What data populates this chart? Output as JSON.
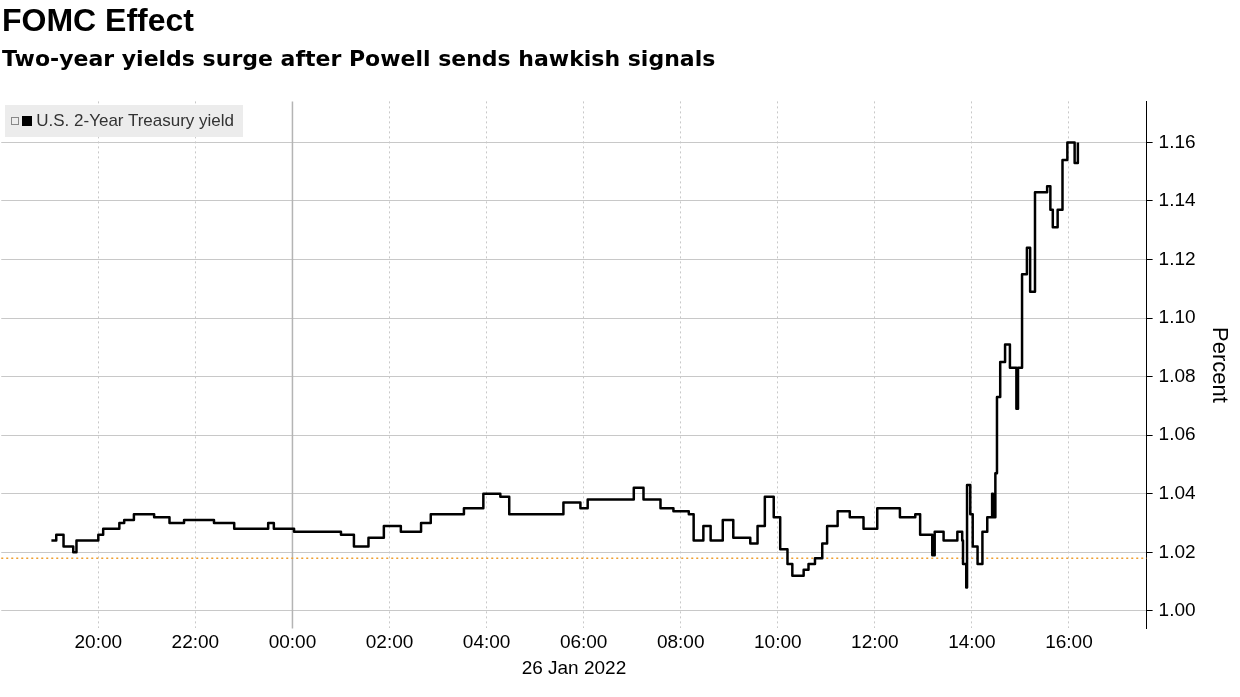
{
  "chart_data": {
    "type": "step",
    "title": "FOMC Effect",
    "subtitle": "Two-year yields surge after Powell sends hawkish signals",
    "xlabel": "26 Jan 2022",
    "ylabel": "Percent",
    "xlim": [
      "2022-01-25T18:00",
      "2022-01-26T17:36"
    ],
    "ylim": [
      0.994,
      1.174
    ],
    "xticks": [
      {
        "value": "2022-01-25T20:00",
        "label": "20:00"
      },
      {
        "value": "2022-01-25T22:00",
        "label": "22:00"
      },
      {
        "value": "2022-01-26T00:00",
        "label": "00:00"
      },
      {
        "value": "2022-01-26T02:00",
        "label": "02:00"
      },
      {
        "value": "2022-01-26T04:00",
        "label": "04:00"
      },
      {
        "value": "2022-01-26T06:00",
        "label": "06:00"
      },
      {
        "value": "2022-01-26T08:00",
        "label": "08:00"
      },
      {
        "value": "2022-01-26T10:00",
        "label": "10:00"
      },
      {
        "value": "2022-01-26T12:00",
        "label": "12:00"
      },
      {
        "value": "2022-01-26T14:00",
        "label": "14:00"
      },
      {
        "value": "2022-01-26T16:00",
        "label": "16:00"
      }
    ],
    "yticks": [
      {
        "value": 1.0,
        "label": "1.00"
      },
      {
        "value": 1.02,
        "label": "1.02"
      },
      {
        "value": 1.04,
        "label": "1.04"
      },
      {
        "value": 1.06,
        "label": "1.06"
      },
      {
        "value": 1.08,
        "label": "1.08"
      },
      {
        "value": 1.1,
        "label": "1.10"
      },
      {
        "value": 1.12,
        "label": "1.12"
      },
      {
        "value": 1.14,
        "label": "1.14"
      },
      {
        "value": 1.16,
        "label": "1.16"
      }
    ],
    "grid": true,
    "legend": "top left",
    "ref_lines": [
      {
        "axis": "x",
        "value": "2022-01-26T00:00",
        "color": "#b4b4b4",
        "line_style": "solid"
      },
      {
        "axis": "y",
        "value": 1.018,
        "color": "#f0a030",
        "line_style": "dotted"
      }
    ],
    "x": [
      "2022-01-25T19:02",
      "2022-01-25T19:08",
      "2022-01-25T19:17",
      "2022-01-25T19:29",
      "2022-01-25T19:33",
      "2022-01-25T20:00",
      "2022-01-25T20:06",
      "2022-01-25T20:26",
      "2022-01-25T20:32",
      "2022-01-25T20:44",
      "2022-01-25T21:09",
      "2022-01-25T21:28",
      "2022-01-25T21:46",
      "2022-01-25T22:23",
      "2022-01-25T22:48",
      "2022-01-25T23:30",
      "2022-01-25T23:37",
      "2022-01-26T00:02",
      "2022-01-26T00:47",
      "2022-01-26T01:00",
      "2022-01-26T01:16",
      "2022-01-26T01:34",
      "2022-01-26T01:53",
      "2022-01-26T02:14",
      "2022-01-26T02:39",
      "2022-01-26T02:51",
      "2022-01-26T03:32",
      "2022-01-26T03:56",
      "2022-01-26T04:17",
      "2022-01-26T04:28",
      "2022-01-26T05:11",
      "2022-01-26T05:35",
      "2022-01-26T05:56",
      "2022-01-26T06:05",
      "2022-01-26T06:42",
      "2022-01-26T07:02",
      "2022-01-26T07:14",
      "2022-01-26T07:35",
      "2022-01-26T07:51",
      "2022-01-26T08:10",
      "2022-01-26T08:16",
      "2022-01-26T08:28",
      "2022-01-26T08:37",
      "2022-01-26T08:52",
      "2022-01-26T09:05",
      "2022-01-26T09:26",
      "2022-01-26T09:35",
      "2022-01-26T09:44",
      "2022-01-26T09:55",
      "2022-01-26T10:03",
      "2022-01-26T10:12",
      "2022-01-26T10:18",
      "2022-01-26T10:32",
      "2022-01-26T10:38",
      "2022-01-26T10:46",
      "2022-01-26T10:55",
      "2022-01-26T11:01",
      "2022-01-26T11:14",
      "2022-01-26T11:29",
      "2022-01-26T11:46",
      "2022-01-26T12:03",
      "2022-01-26T12:31",
      "2022-01-26T12:50",
      "2022-01-26T12:56",
      "2022-01-26T13:11",
      "2022-01-26T13:14",
      "2022-01-26T13:25",
      "2022-01-26T13:42",
      "2022-01-26T13:48",
      "2022-01-26T13:49",
      "2022-01-26T13:53",
      "2022-01-26T13:54",
      "2022-01-26T13:58",
      "2022-01-26T14:01",
      "2022-01-26T14:07",
      "2022-01-26T14:13",
      "2022-01-26T14:19",
      "2022-01-26T14:25",
      "2022-01-26T14:26",
      "2022-01-26T14:29",
      "2022-01-26T14:31",
      "2022-01-26T14:35",
      "2022-01-26T14:41",
      "2022-01-26T14:47",
      "2022-01-26T14:55",
      "2022-01-26T14:57",
      "2022-01-26T15:02",
      "2022-01-26T15:08",
      "2022-01-26T15:12",
      "2022-01-26T15:18",
      "2022-01-26T15:33",
      "2022-01-26T15:37",
      "2022-01-26T15:40",
      "2022-01-26T15:46",
      "2022-01-26T15:52",
      "2022-01-26T15:58",
      "2022-01-26T16:07",
      "2022-01-26T16:11"
    ],
    "series": [
      {
        "name": "U.S. 2-Year Treasury yield",
        "color": "#000000",
        "values": [
          1.024,
          1.026,
          1.022,
          1.02,
          1.024,
          1.026,
          1.028,
          1.03,
          1.031,
          1.033,
          1.032,
          1.03,
          1.031,
          1.03,
          1.028,
          1.03,
          1.028,
          1.027,
          1.027,
          1.026,
          1.022,
          1.025,
          1.029,
          1.027,
          1.03,
          1.033,
          1.035,
          1.04,
          1.039,
          1.033,
          1.033,
          1.037,
          1.035,
          1.038,
          1.038,
          1.042,
          1.038,
          1.035,
          1.034,
          1.033,
          1.024,
          1.029,
          1.024,
          1.031,
          1.025,
          1.023,
          1.029,
          1.039,
          1.032,
          1.021,
          1.016,
          1.012,
          1.014,
          1.016,
          1.018,
          1.023,
          1.029,
          1.034,
          1.032,
          1.028,
          1.035,
          1.032,
          1.033,
          1.026,
          1.019,
          1.027,
          1.024,
          1.027,
          1.024,
          1.016,
          1.008,
          1.043,
          1.033,
          1.022,
          1.016,
          1.027,
          1.032,
          1.04,
          1.032,
          1.047,
          1.073,
          1.085,
          1.091,
          1.083,
          1.069,
          1.083,
          1.115,
          1.124,
          1.109,
          1.143,
          1.145,
          1.137,
          1.131,
          1.137,
          1.154,
          1.16,
          1.153,
          1.16
        ]
      }
    ]
  }
}
